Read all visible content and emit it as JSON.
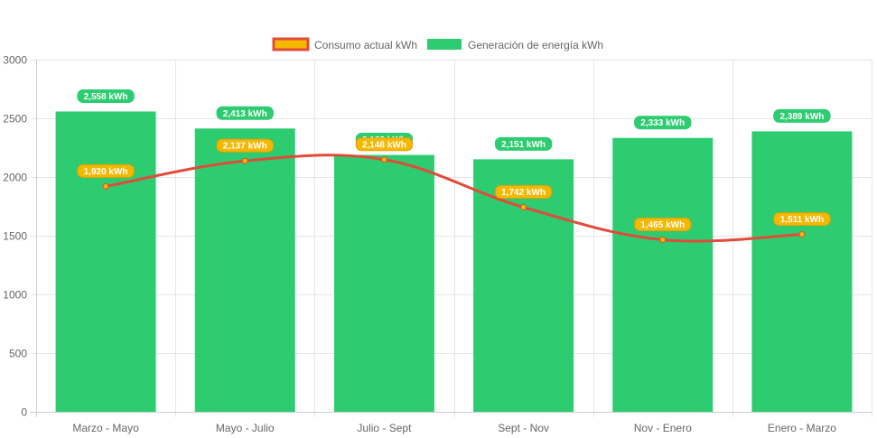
{
  "chart_data": {
    "type": "bar",
    "categories": [
      "Marzo - Mayo",
      "Mayo - Julio",
      "Julio - Sept",
      "Sept - Nov",
      "Nov - Enero",
      "Enero - Marzo"
    ],
    "series": [
      {
        "name": "Consumo actual kWh",
        "kind": "line",
        "values": [
          1920,
          2137,
          2148,
          1742,
          1465,
          1511
        ],
        "labels": [
          "1,920 kWh",
          "2,137 kWh",
          "2,148 kWh",
          "1,742 kWh",
          "1,465 kWh",
          "1,511 kWh"
        ],
        "color": "#e04b3a",
        "label_bg": "#f5b800",
        "label_border": "#e0a100"
      },
      {
        "name": "Generación de energía kWh",
        "kind": "bar",
        "values": [
          2558,
          2413,
          2188,
          2151,
          2333,
          2389
        ],
        "labels": [
          "2,558 kWh",
          "2,413 kWh",
          "2,188 kWh",
          "2,151 kWh",
          "2,333 kWh",
          "2,389 kWh"
        ],
        "color": "#2ecc71"
      }
    ],
    "ylim": [
      0,
      3000
    ],
    "yticks": [
      "0",
      "500",
      "1000",
      "1500",
      "2000",
      "2500",
      "3000"
    ],
    "grid": true,
    "legend_position": "top"
  }
}
